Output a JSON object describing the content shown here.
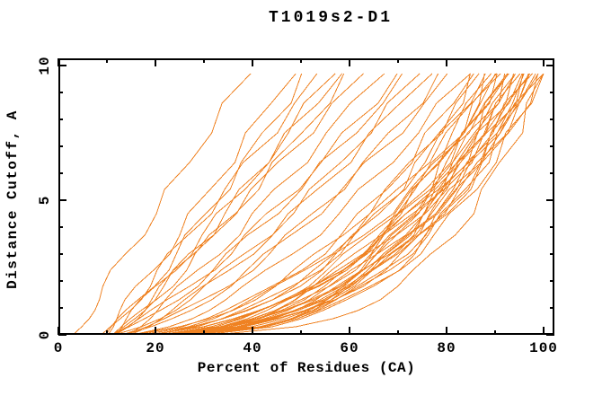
{
  "chart_data": {
    "type": "line",
    "title": "T1019s2-D1",
    "xlabel": "Percent of Residues (CA)",
    "ylabel": "Distance Cutoff, A",
    "xlim": [
      0,
      100
    ],
    "ylim": [
      0,
      10
    ],
    "x_major_ticks": [
      0,
      20,
      40,
      60,
      80,
      100
    ],
    "x_minor_ticks": [
      10,
      30,
      50,
      70,
      90
    ],
    "x_tick_labels": [
      "0",
      "20",
      "40",
      "60",
      "80",
      "100"
    ],
    "y_major_ticks": [
      0,
      5,
      10
    ],
    "y_minor_ticks": [
      1,
      2,
      3,
      4,
      6,
      7,
      8,
      9
    ],
    "y_tick_labels": [
      "0",
      "5",
      "10"
    ],
    "grid": false,
    "legend": false,
    "line_color": "#ef8222",
    "background_color": "#ffffff",
    "max_cutoff_plotted": 9.7,
    "cutoff_samples": [
      0.05,
      0.3,
      0.6,
      0.9,
      1.3,
      1.8,
      2.4,
      3.0,
      3.7,
      4.5,
      5.4,
      6.4,
      7.5,
      8.6,
      9.7
    ],
    "series_format": [
      "liftoff_percent_at_cutoff_0",
      "percent_at_cutoff_9.7",
      "shape_exponent"
    ],
    "series": [
      [
        3,
        39,
        1.0
      ],
      [
        9,
        48,
        0.95
      ],
      [
        10,
        51,
        0.9
      ],
      [
        10,
        54,
        1.0
      ],
      [
        11,
        56,
        0.85
      ],
      [
        11,
        58,
        0.95
      ],
      [
        12,
        60,
        0.9
      ],
      [
        12,
        63,
        1.0
      ],
      [
        13,
        66,
        0.85
      ],
      [
        10,
        70,
        0.75
      ],
      [
        12,
        72,
        0.8
      ],
      [
        11,
        74,
        0.7
      ],
      [
        13,
        76,
        0.75
      ],
      [
        12,
        79,
        0.65
      ],
      [
        14,
        81,
        0.7
      ],
      [
        13,
        84,
        0.6
      ],
      [
        9,
        85,
        0.45
      ],
      [
        10,
        86,
        0.4
      ],
      [
        12,
        87,
        0.5
      ],
      [
        11,
        88,
        0.35
      ],
      [
        13,
        88,
        0.45
      ],
      [
        10,
        89,
        0.3
      ],
      [
        14,
        90,
        0.4
      ],
      [
        12,
        90,
        0.5
      ],
      [
        11,
        91,
        0.35
      ],
      [
        15,
        91,
        0.45
      ],
      [
        10,
        92,
        0.3
      ],
      [
        13,
        92,
        0.4
      ],
      [
        12,
        93,
        0.35
      ],
      [
        14,
        93,
        0.5
      ],
      [
        11,
        94,
        0.3
      ],
      [
        16,
        94,
        0.45
      ],
      [
        10,
        95,
        0.35
      ],
      [
        13,
        95,
        0.4
      ],
      [
        12,
        96,
        0.3
      ],
      [
        15,
        96,
        0.45
      ],
      [
        11,
        97,
        0.35
      ],
      [
        14,
        97,
        0.4
      ],
      [
        10,
        98,
        0.3
      ],
      [
        13,
        98,
        0.45
      ],
      [
        12,
        99,
        0.35
      ],
      [
        16,
        99,
        0.4
      ],
      [
        11,
        100,
        0.3
      ],
      [
        14,
        100,
        0.35
      ],
      [
        12,
        100,
        0.25
      ],
      [
        15,
        93,
        0.32
      ],
      [
        13,
        96,
        0.28
      ],
      [
        16,
        98,
        0.38
      ]
    ]
  }
}
